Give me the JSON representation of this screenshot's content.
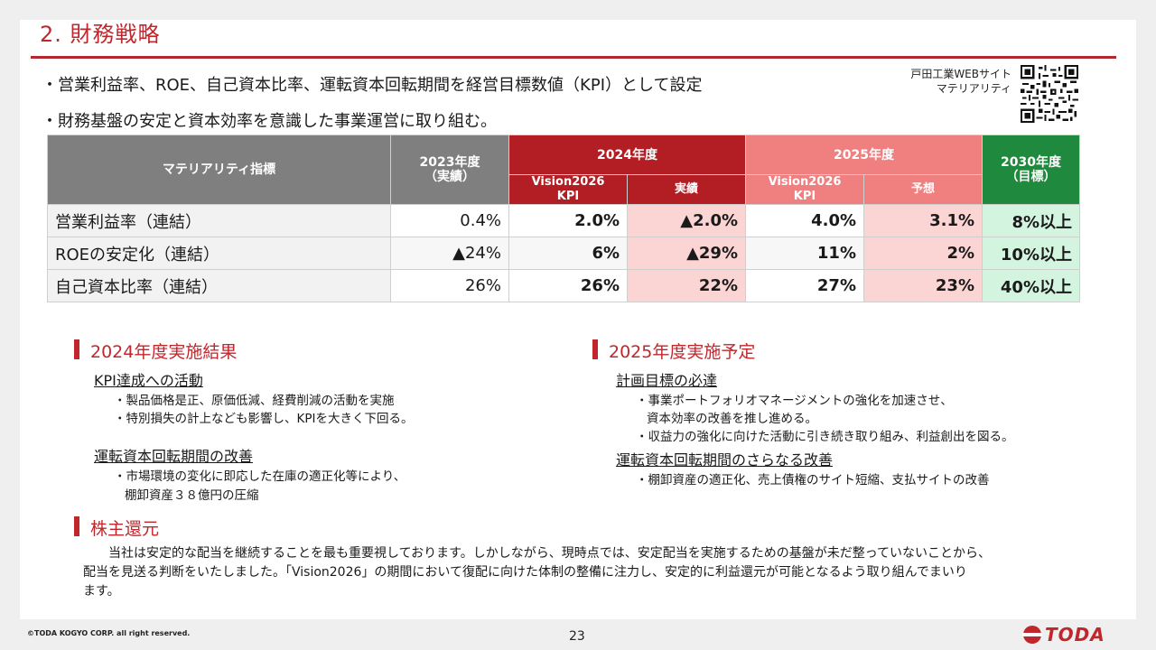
{
  "title": "2. 財務戦略",
  "bullets": [
    "・営業利益率、ROE、自己資本比率、運転資本回転期間を経営目標数値（KPI）として設定",
    "・財務基盤の安定と資本効率を意識した事業運営に取り組む。"
  ],
  "qr": {
    "label_line1": "戸田工業WEBサイト",
    "label_line2": "マテリアリティ"
  },
  "table": {
    "header_metric": "マテリアリティ指標",
    "header_2023_line1": "2023年度",
    "header_2023_line2": "（実績）",
    "header_2024": "2024年度",
    "header_2024_kpi_line1": "Vision2026",
    "header_2024_kpi_line2": "KPI",
    "header_2024_actual": "実績",
    "header_2025": "2025年度",
    "header_2025_kpi_line1": "Vision2026",
    "header_2025_kpi_line2": "KPI",
    "header_2025_forecast": "予想",
    "header_2030_line1": "2030年度",
    "header_2030_line2": "（目標）",
    "rows": [
      {
        "label": "営業利益率（連結）",
        "v2023": "0.4%",
        "v2024kpi": "2.0%",
        "v2024act": "▲2.0%",
        "v2025kpi": "4.0%",
        "v2025fc": "3.1%",
        "v2030": "8%以上"
      },
      {
        "label": "ROEの安定化（連結）",
        "v2023": "▲24%",
        "v2024kpi": "6%",
        "v2024act": "▲29%",
        "v2025kpi": "11%",
        "v2025fc": "2%",
        "v2030": "10%以上"
      },
      {
        "label": "自己資本比率（連結）",
        "v2023": "26%",
        "v2024kpi": "26%",
        "v2024act": "22%",
        "v2025kpi": "27%",
        "v2025fc": "23%",
        "v2030": "40%以上"
      }
    ]
  },
  "results2024": {
    "title": "2024年度実施結果",
    "kpi_title": "KPI達成への活動",
    "kpi_lines": [
      "・製品価格是正、原価低減、経費削減の活動を実施",
      "・特別損失の計上なども影響し、KPIを大きく下回る。"
    ],
    "wc_title": "運転資本回転期間の改善",
    "wc_lines": [
      "・市場環境の変化に即応した在庫の適正化等により、",
      "棚卸資産３８億円の圧縮"
    ]
  },
  "plan2025": {
    "title": "2025年度実施予定",
    "goal_title": "計画目標の必達",
    "goal_lines": [
      "・事業ポートフォリオマネージメントの強化を加速させ、",
      "資本効率の改善を推し進める。",
      "・収益力の強化に向けた活動に引き続き取り組み、利益創出を図る。"
    ],
    "wc_title": "運転資本回転期間のさらなる改善",
    "wc_lines": [
      "・棚卸資産の適正化、売上債権のサイト短縮、支払サイトの改善"
    ]
  },
  "shareholder": {
    "title": "株主還元",
    "paragraph_line1": "当社は安定的な配当を継続することを最も重要視しております。しかしながら、現時点では、安定配当を実施するための基盤が未だ整っていないことから、",
    "paragraph_line2": "配当を見送る判断をいたしました。「Vision2026」の期間において復配に向けた体制の整備に注力し、安定的に利益還元が可能となるよう取り組んでまいり",
    "paragraph_line3": "ます。"
  },
  "footer": {
    "copyright": "©TODA KOGYO CORP. all right reserved.",
    "page": "23",
    "logo": "TODA"
  },
  "colors": {
    "accent_red": "#c0272d",
    "header_2024": "#b21e24",
    "header_2025": "#f08080",
    "header_2030": "#1f8a3d",
    "cell_pink": "#fbd4d4",
    "cell_green": "#d3f4df"
  }
}
